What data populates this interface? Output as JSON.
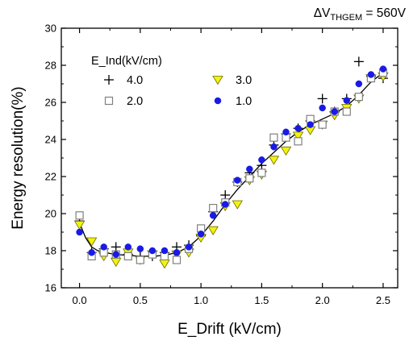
{
  "chart_data": {
    "type": "scatter",
    "title": "",
    "annotation": {
      "prefix": "ΔV",
      "subscript": "THGEM",
      "suffix": " = 560V"
    },
    "xlabel": "E_Drift (kV/cm)",
    "ylabel": "Energy  resolution(%)",
    "xlim": [
      -0.15,
      2.62
    ],
    "ylim": [
      16,
      30
    ],
    "xticks": [
      0.0,
      0.5,
      1.0,
      1.5,
      2.0,
      2.5
    ],
    "xtick_labels": [
      "0.0",
      "0.5",
      "1.0",
      "1.5",
      "2.0",
      "2.5"
    ],
    "yticks": [
      16,
      18,
      20,
      22,
      24,
      26,
      28,
      30
    ],
    "ytick_labels": [
      "16",
      "18",
      "20",
      "22",
      "24",
      "26",
      "28",
      "30"
    ],
    "grid": false,
    "legend": {
      "title": "E_Ind(kV/cm)",
      "placement": "top-left",
      "columns": 2
    },
    "series": [
      {
        "name": "4.0",
        "marker": "plus",
        "color": "#000000",
        "x": [
          0.0,
          0.1,
          0.2,
          0.3,
          0.4,
          0.5,
          0.6,
          0.7,
          0.8,
          0.9,
          1.0,
          1.1,
          1.2,
          1.3,
          1.4,
          1.5,
          1.6,
          1.7,
          1.8,
          1.9,
          2.0,
          2.1,
          2.2,
          2.3,
          2.4,
          2.5
        ],
        "y": [
          19.6,
          17.9,
          18.1,
          18.2,
          17.8,
          17.7,
          17.7,
          17.9,
          18.2,
          18.3,
          18.8,
          20.1,
          21.0,
          21.7,
          22.2,
          22.6,
          23.7,
          24.3,
          24.6,
          25.0,
          26.2,
          25.5,
          26.2,
          28.2,
          27.4,
          27.3
        ]
      },
      {
        "name": "3.0",
        "marker": "triangle-down",
        "color": "#f2f20f",
        "x": [
          0.0,
          0.1,
          0.2,
          0.3,
          0.4,
          0.5,
          0.6,
          0.7,
          0.8,
          0.9,
          1.0,
          1.1,
          1.2,
          1.3,
          1.4,
          1.5,
          1.6,
          1.7,
          1.8,
          1.9,
          2.0,
          2.1,
          2.2,
          2.3,
          2.4,
          2.5
        ],
        "y": [
          19.4,
          18.5,
          17.7,
          17.4,
          17.9,
          17.5,
          17.8,
          17.3,
          17.8,
          17.9,
          18.7,
          19.1,
          20.4,
          20.5,
          21.8,
          22.1,
          22.9,
          23.4,
          24.2,
          24.5,
          24.8,
          25.3,
          25.7,
          26.2,
          27.3,
          27.4
        ]
      },
      {
        "name": "2.0",
        "marker": "square-open",
        "color": "#808080",
        "x": [
          0.0,
          0.1,
          0.2,
          0.3,
          0.4,
          0.5,
          0.6,
          0.7,
          0.8,
          0.9,
          1.0,
          1.1,
          1.2,
          1.3,
          1.4,
          1.5,
          1.6,
          1.7,
          1.8,
          1.9,
          2.0,
          2.1,
          2.2,
          2.3,
          2.4,
          2.5
        ],
        "y": [
          19.9,
          17.7,
          17.9,
          17.8,
          17.7,
          17.5,
          17.8,
          17.7,
          17.5,
          18.1,
          19.2,
          20.3,
          20.6,
          21.7,
          21.9,
          22.2,
          24.1,
          24.1,
          23.9,
          25.1,
          24.8,
          25.5,
          25.5,
          26.3,
          27.3,
          27.6
        ]
      },
      {
        "name": "1.0",
        "marker": "circle-filled",
        "color": "#1a1ae6",
        "x": [
          0.0,
          0.1,
          0.2,
          0.3,
          0.4,
          0.5,
          0.6,
          0.7,
          0.8,
          0.9,
          1.0,
          1.1,
          1.2,
          1.3,
          1.4,
          1.5,
          1.6,
          1.7,
          1.8,
          1.9,
          2.0,
          2.1,
          2.2,
          2.3,
          2.4,
          2.5
        ],
        "y": [
          19.0,
          17.9,
          18.2,
          17.8,
          18.2,
          18.1,
          18.0,
          18.0,
          17.9,
          18.2,
          18.9,
          19.9,
          20.5,
          21.8,
          22.4,
          22.9,
          23.6,
          24.4,
          24.6,
          24.8,
          25.7,
          25.5,
          26.1,
          27.0,
          27.5,
          27.8
        ]
      }
    ],
    "fit_curve": {
      "color": "#000000",
      "x": [
        0.0,
        0.05,
        0.1,
        0.15,
        0.2,
        0.3,
        0.4,
        0.5,
        0.6,
        0.7,
        0.8,
        0.9,
        1.0,
        1.1,
        1.2,
        1.3,
        1.4,
        1.5,
        1.6,
        1.7,
        1.8,
        1.9,
        2.0,
        2.1,
        2.2,
        2.3,
        2.4,
        2.5
      ],
      "y": [
        19.5,
        18.7,
        18.2,
        18.0,
        17.9,
        17.8,
        17.75,
        17.7,
        17.7,
        17.75,
        17.9,
        18.2,
        18.8,
        19.6,
        20.5,
        21.3,
        22.0,
        22.7,
        23.3,
        23.9,
        24.4,
        24.8,
        25.1,
        25.4,
        25.8,
        26.4,
        27.1,
        27.6
      ]
    }
  }
}
